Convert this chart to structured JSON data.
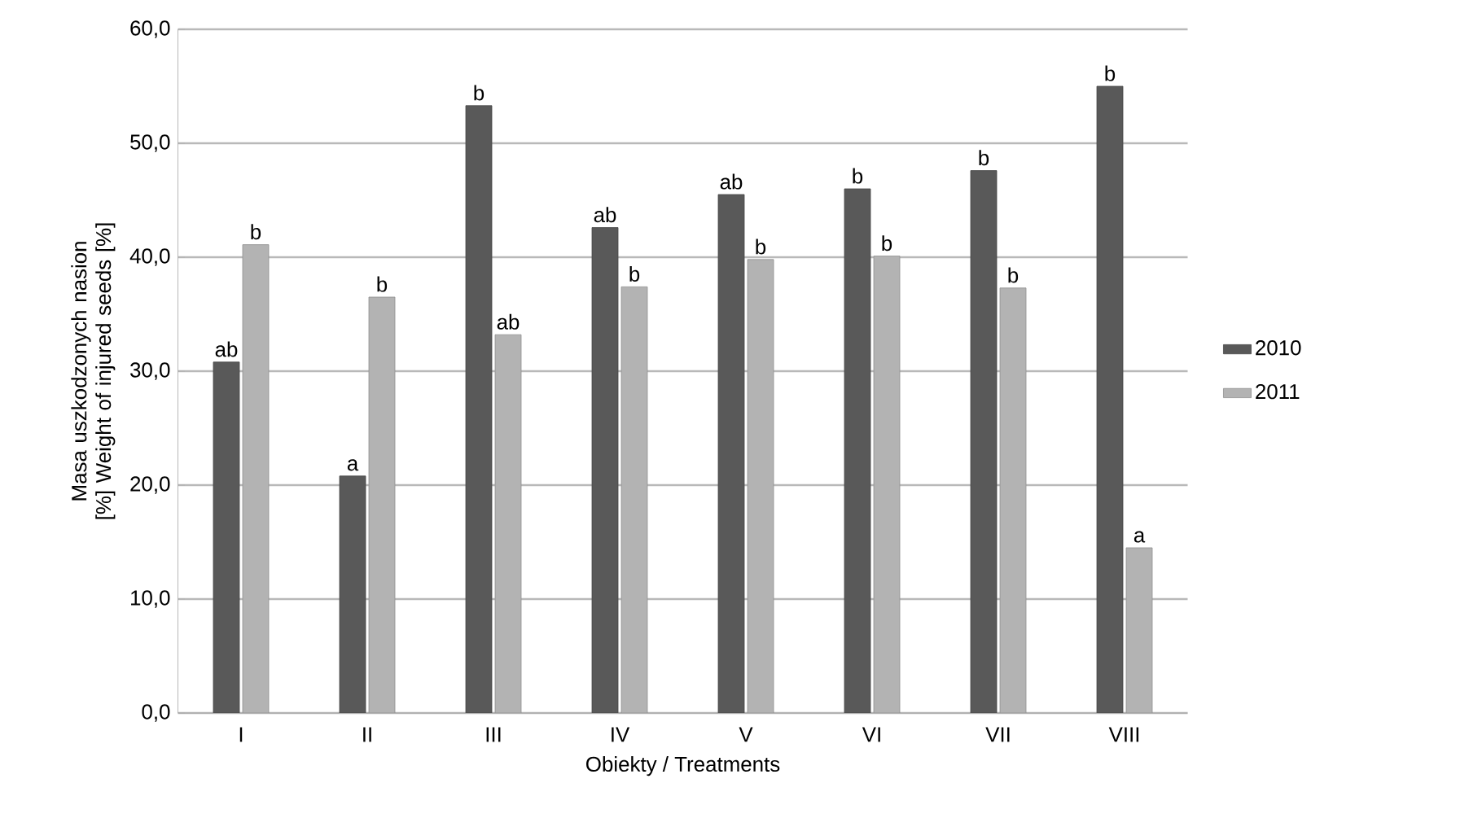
{
  "chart_data": {
    "type": "bar",
    "xlabel": "Obiekty / Treatments",
    "ylabel": "Masa uszkodzonych nasion [%] Weight of injured seeds [%]",
    "categories": [
      "I",
      "II",
      "III",
      "IV",
      "V",
      "VI",
      "VII",
      "VIII"
    ],
    "series": [
      {
        "name": "2010",
        "color": "#595959",
        "values": [
          30.8,
          20.8,
          53.3,
          42.6,
          45.5,
          46.0,
          47.6,
          55.0
        ]
      },
      {
        "name": "2011",
        "color": "#b3b3b3",
        "values": [
          41.1,
          36.5,
          33.2,
          37.4,
          39.8,
          40.1,
          37.3,
          14.5
        ]
      }
    ],
    "ylim": [
      0,
      60
    ],
    "yticks": [
      {
        "value": 0,
        "label": "0,0"
      },
      {
        "value": 10,
        "label": "10,0"
      },
      {
        "value": 20,
        "label": "20,0"
      },
      {
        "value": 30,
        "label": "30,0"
      },
      {
        "value": 40,
        "label": "40,0"
      },
      {
        "value": 50,
        "label": "50,0"
      },
      {
        "value": 60,
        "label": "60,0"
      }
    ],
    "grid": "y",
    "legend": "right",
    "annotations": [
      {
        "text": "ab",
        "x": "I",
        "y": 30.8
      },
      {
        "text": "b",
        "x": "I",
        "y": 41.1
      },
      {
        "text": "a",
        "x": "II",
        "y": 20.8
      },
      {
        "text": "b",
        "x": "II",
        "y": 36.5
      },
      {
        "text": "b",
        "x": "III",
        "y": 53.3
      },
      {
        "text": "ab",
        "x": "III",
        "y": 33.2
      },
      {
        "text": "ab",
        "x": "IV",
        "y": 42.6
      },
      {
        "text": "b",
        "x": "IV",
        "y": 37.4
      },
      {
        "text": "ab",
        "x": "V",
        "y": 45.5
      },
      {
        "text": "b",
        "x": "V",
        "y": 39.8
      },
      {
        "text": "b",
        "x": "VI",
        "y": 46.0
      },
      {
        "text": "b",
        "x": "VI",
        "y": 40.1
      },
      {
        "text": "b",
        "x": "VII",
        "y": 47.6
      },
      {
        "text": "b",
        "x": "VII",
        "y": 37.3
      },
      {
        "text": "b",
        "x": "VIII",
        "y": 55.0
      },
      {
        "text": "a",
        "x": "VIII",
        "y": 14.5
      }
    ]
  }
}
